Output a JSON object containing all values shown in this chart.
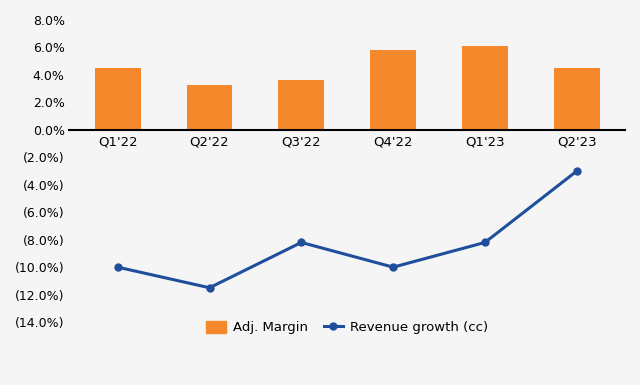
{
  "categories": [
    "Q1'22",
    "Q2'22",
    "Q3'22",
    "Q4'22",
    "Q1'23",
    "Q2'23"
  ],
  "adj_margin": [
    0.045,
    0.033,
    0.036,
    0.058,
    0.061,
    0.045
  ],
  "revenue_growth": [
    -0.1,
    -0.115,
    -0.082,
    -0.1,
    -0.082,
    -0.03
  ],
  "bar_color": "#F5882A",
  "line_color": "#1F4E9C",
  "ylim": [
    -0.14,
    0.08
  ],
  "yticks": [
    -0.14,
    -0.12,
    -0.1,
    -0.08,
    -0.06,
    -0.04,
    -0.02,
    0.0,
    0.02,
    0.04,
    0.06,
    0.08
  ],
  "legend_bar_label": "Adj. Margin",
  "legend_line_label": "Revenue growth (cc)",
  "background_color": "#f5f5f5",
  "line_width": 2.2,
  "line_marker": "o",
  "line_marker_size": 5
}
